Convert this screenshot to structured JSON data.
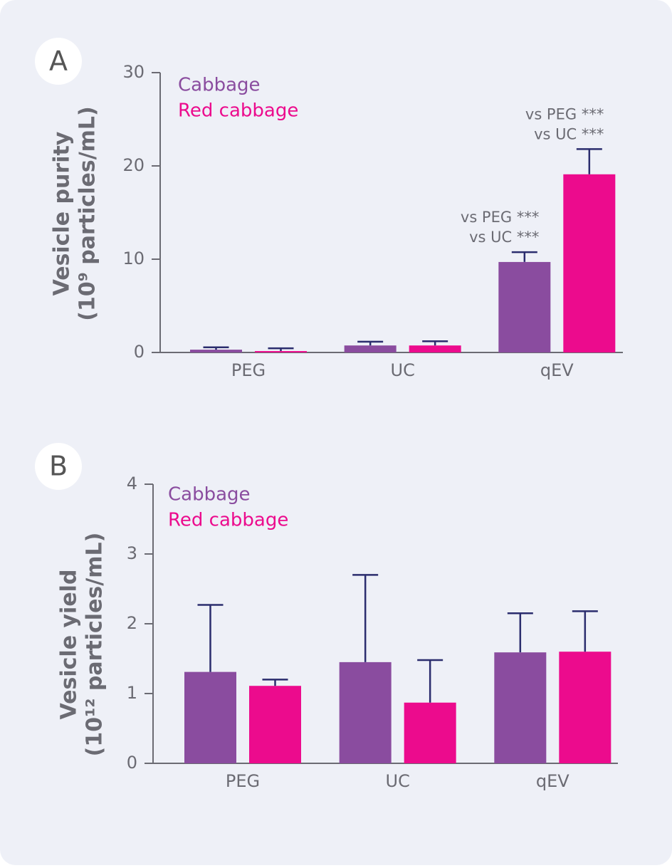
{
  "chart_data": [
    {
      "type": "bar",
      "panel_label": "A",
      "y_label": [
        "Vesicle purity",
        "(10⁹ particles/mL)"
      ],
      "categories": [
        "PEG",
        "UC",
        "qEV"
      ],
      "series": [
        {
          "name": "Cabbage",
          "color": "#8a4c9f",
          "values": [
            0.3,
            0.75,
            9.7
          ],
          "errors": [
            0.25,
            0.4,
            1.05
          ]
        },
        {
          "name": "Red cabbage",
          "color": "#ec0b8d",
          "values": [
            0.15,
            0.75,
            19.1
          ],
          "errors": [
            0.3,
            0.45,
            2.7
          ]
        }
      ],
      "annotations": [
        [
          "vs PEG ***",
          "vs UC ***"
        ],
        [
          "vs PEG ***",
          "vs UC ***"
        ]
      ],
      "ylim": [
        0,
        30
      ],
      "yticks": [
        0,
        10,
        20,
        30
      ]
    },
    {
      "type": "bar",
      "panel_label": "B",
      "y_label": [
        "Vesicle yield",
        "(10¹² particles/mL)"
      ],
      "categories": [
        "PEG",
        "UC",
        "qEV"
      ],
      "series": [
        {
          "name": "Cabbage",
          "color": "#8a4c9f",
          "values": [
            1.31,
            1.45,
            1.59
          ],
          "errors": [
            0.96,
            1.25,
            0.56
          ]
        },
        {
          "name": "Red cabbage",
          "color": "#ec0b8d",
          "values": [
            1.11,
            0.87,
            1.6
          ],
          "errors": [
            0.09,
            0.61,
            0.58
          ]
        }
      ],
      "ylim": [
        0,
        4
      ],
      "yticks": [
        0,
        1,
        2,
        3,
        4
      ]
    }
  ]
}
